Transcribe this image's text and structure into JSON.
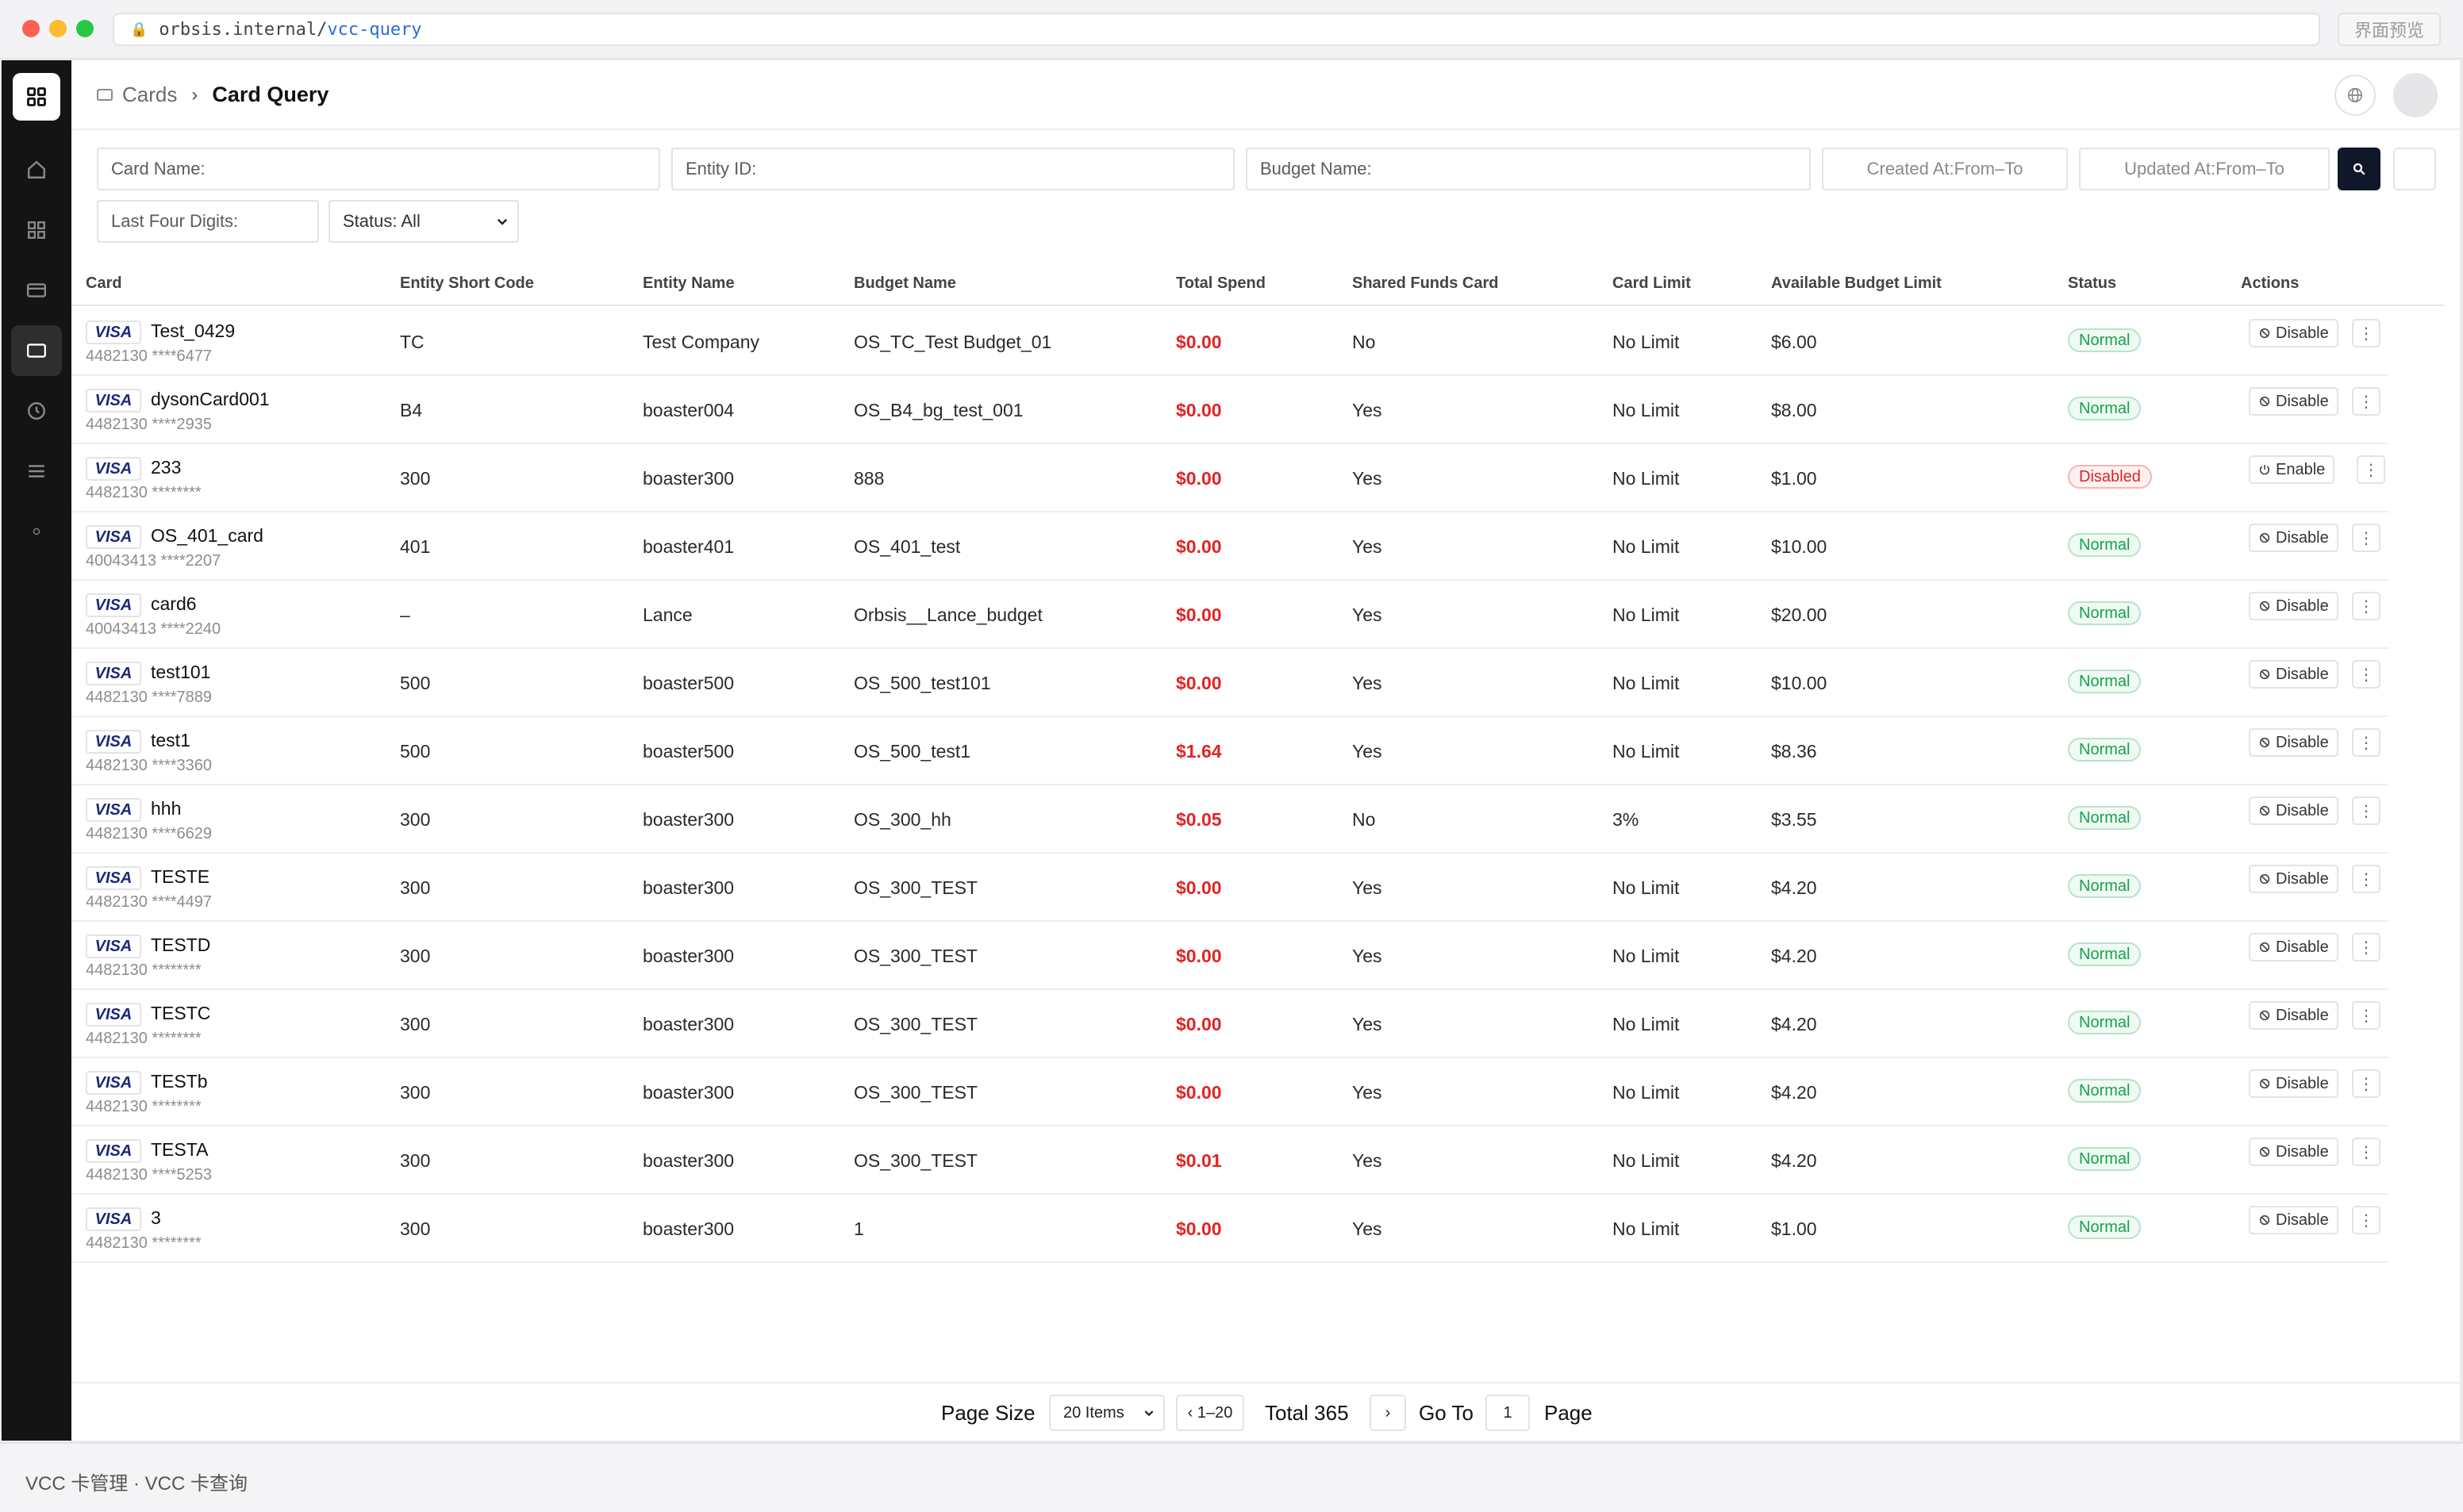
{
  "browser": {
    "url_host": "orbsis.internal/",
    "url_path": "vcc-query",
    "preview_label": "界面预览"
  },
  "breadcrumb": {
    "parent": "Cards",
    "current": "Card Query"
  },
  "filters": {
    "card_name": "Card Name:",
    "entity_id": "Entity ID:",
    "budget_name": "Budget Name:",
    "created_at": "Created At:From–To",
    "updated_at": "Updated At:From–To",
    "last_four": "Last Four Digits:",
    "status": "Status: All"
  },
  "table": {
    "headers": [
      "Card",
      "Entity Short Code",
      "Entity Name",
      "Budget Name",
      "Total Spend",
      "Shared Funds Card",
      "Card Limit",
      "Available Budget Limit",
      "Status",
      "Actions"
    ],
    "brand_label": "VISA",
    "rows": [
      {
        "name": "Test_0429",
        "number": "4482130 ****6477",
        "code": "TC",
        "entity": "Test Company",
        "budget": "OS_TC_Test Budget_01",
        "spend": "$0.00",
        "shared": "No",
        "limit": "No Limit",
        "available": "$6.00",
        "status": "Normal",
        "action": "Disable"
      },
      {
        "name": "dysonCard001",
        "number": "4482130 ****2935",
        "code": "B4",
        "entity": "boaster004",
        "budget": "OS_B4_bg_test_001",
        "spend": "$0.00",
        "shared": "Yes",
        "limit": "No Limit",
        "available": "$8.00",
        "status": "Normal",
        "action": "Disable"
      },
      {
        "name": "233",
        "number": "4482130 ********",
        "code": "300",
        "entity": "boaster300",
        "budget": "888",
        "spend": "$0.00",
        "shared": "Yes",
        "limit": "No Limit",
        "available": "$1.00",
        "status": "Disabled",
        "action": "Enable"
      },
      {
        "name": "OS_401_card",
        "number": "40043413 ****2207",
        "code": "401",
        "entity": "boaster401",
        "budget": "OS_401_test",
        "spend": "$0.00",
        "shared": "Yes",
        "limit": "No Limit",
        "available": "$10.00",
        "status": "Normal",
        "action": "Disable"
      },
      {
        "name": "card6",
        "number": "40043413 ****2240",
        "code": "–",
        "entity": "Lance",
        "budget": "Orbsis__Lance_budget",
        "spend": "$0.00",
        "shared": "Yes",
        "limit": "No Limit",
        "available": "$20.00",
        "status": "Normal",
        "action": "Disable"
      },
      {
        "name": "test101",
        "number": "4482130 ****7889",
        "code": "500",
        "entity": "boaster500",
        "budget": "OS_500_test101",
        "spend": "$0.00",
        "shared": "Yes",
        "limit": "No Limit",
        "available": "$10.00",
        "status": "Normal",
        "action": "Disable"
      },
      {
        "name": "test1",
        "number": "4482130 ****3360",
        "code": "500",
        "entity": "boaster500",
        "budget": "OS_500_test1",
        "spend": "$1.64",
        "shared": "Yes",
        "limit": "No Limit",
        "available": "$8.36",
        "status": "Normal",
        "action": "Disable"
      },
      {
        "name": "hhh",
        "number": "4482130 ****6629",
        "code": "300",
        "entity": "boaster300",
        "budget": "OS_300_hh",
        "spend": "$0.05",
        "shared": "No",
        "limit": "3%",
        "available": "$3.55",
        "status": "Normal",
        "action": "Disable"
      },
      {
        "name": "TESTE",
        "number": "4482130 ****4497",
        "code": "300",
        "entity": "boaster300",
        "budget": "OS_300_TEST",
        "spend": "$0.00",
        "shared": "Yes",
        "limit": "No Limit",
        "available": "$4.20",
        "status": "Normal",
        "action": "Disable"
      },
      {
        "name": "TESTD",
        "number": "4482130 ********",
        "code": "300",
        "entity": "boaster300",
        "budget": "OS_300_TEST",
        "spend": "$0.00",
        "shared": "Yes",
        "limit": "No Limit",
        "available": "$4.20",
        "status": "Normal",
        "action": "Disable"
      },
      {
        "name": "TESTC",
        "number": "4482130 ********",
        "code": "300",
        "entity": "boaster300",
        "budget": "OS_300_TEST",
        "spend": "$0.00",
        "shared": "Yes",
        "limit": "No Limit",
        "available": "$4.20",
        "status": "Normal",
        "action": "Disable"
      },
      {
        "name": "TESTb",
        "number": "4482130 ********",
        "code": "300",
        "entity": "boaster300",
        "budget": "OS_300_TEST",
        "spend": "$0.00",
        "shared": "Yes",
        "limit": "No Limit",
        "available": "$4.20",
        "status": "Normal",
        "action": "Disable"
      },
      {
        "name": "TESTA",
        "number": "4482130 ****5253",
        "code": "300",
        "entity": "boaster300",
        "budget": "OS_300_TEST",
        "spend": "$0.01",
        "shared": "Yes",
        "limit": "No Limit",
        "available": "$4.20",
        "status": "Normal",
        "action": "Disable"
      },
      {
        "name": "3",
        "number": "4482130 ********",
        "code": "300",
        "entity": "boaster300",
        "budget": "1",
        "spend": "$0.00",
        "shared": "Yes",
        "limit": "No Limit",
        "available": "$1.00",
        "status": "Normal",
        "action": "Disable"
      }
    ]
  },
  "pagination": {
    "page_size_label": "Page Size",
    "page_size_value": "20 Items",
    "range": "‹ 1–20",
    "total": "Total 365",
    "next": "›",
    "goto_label": "Go To",
    "goto_value": "1",
    "page_label": "Page"
  },
  "footer": {
    "text": "VCC 卡管理 · VCC 卡查询"
  },
  "colors": {
    "accent": "#0f172a",
    "spend": "#e02424",
    "normal": "#16a34a",
    "disabled": "#dc2626"
  },
  "icons": [
    "lock-icon",
    "app-grid-icon",
    "home-icon",
    "grid-icon",
    "credit-card-icon",
    "card-icon",
    "clock-icon",
    "menu-icon",
    "dot-icon",
    "globe-icon",
    "search-icon",
    "ban-icon",
    "power-icon",
    "more-icon"
  ]
}
